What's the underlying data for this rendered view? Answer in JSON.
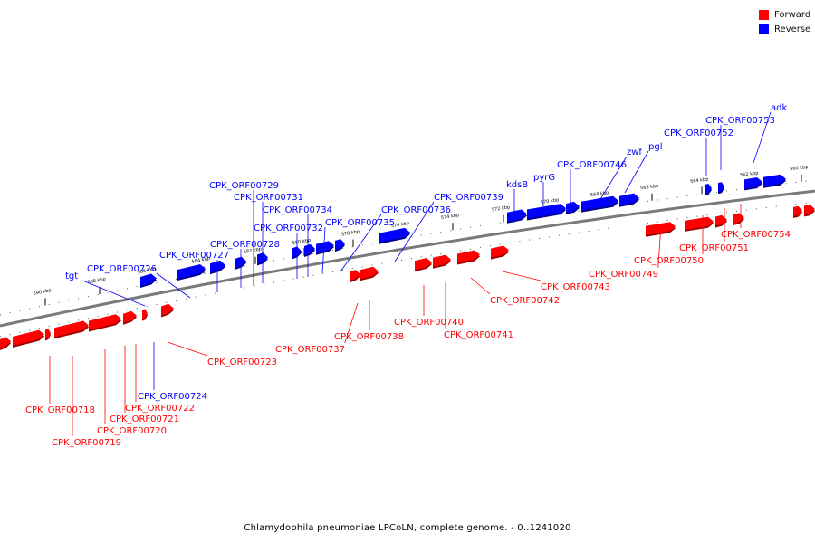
{
  "caption": "Chlamydophila pneumoniae LPCoLN, complete genome. - 0..1241020",
  "legend": [
    {
      "label": "Forward",
      "color": "#ff0000"
    },
    {
      "label": "Reverse",
      "color": "#0000ff"
    }
  ],
  "colors": {
    "forward": "#ff0000",
    "forward_dark": "#a00000",
    "reverse": "#0000ff",
    "reverse_dark": "#00008c",
    "backbone": "#7a7a7a"
  },
  "ticks": [
    "590 kbp",
    "588 kbp",
    "586 kbp",
    "584 kbp",
    "582 kbp",
    "580 kbp",
    "578 kbp",
    "576 kbp",
    "574 kbp",
    "572 kbp",
    "570 kbp",
    "568 kbp",
    "566 kbp",
    "564 kbp",
    "562 kbp",
    "560 kbp"
  ],
  "reverse_genes": [
    "tgt",
    "CPK_ORF00726",
    "CPK_ORF00727",
    "CPK_ORF00728",
    "CPK_ORF00729",
    "CPK_ORF00731",
    "CPK_ORF00732",
    "CPK_ORF00734",
    "CPK_ORF00735",
    "CPK_ORF00736",
    "CPK_ORF00739",
    "kdsB",
    "pyrG",
    "CPK_ORF00746",
    "zwf",
    "pgl",
    "CPK_ORF00752",
    "CPK_ORF00753",
    "adk",
    "CPK_ORF00724"
  ],
  "forward_genes": [
    "CPK_ORF00718",
    "CPK_ORF00719",
    "CPK_ORF00720",
    "CPK_ORF00721",
    "CPK_ORF00722",
    "CPK_ORF00723",
    "CPK_ORF00737",
    "CPK_ORF00738",
    "CPK_ORF00740",
    "CPK_ORF00741",
    "CPK_ORF00742",
    "CPK_ORF00743",
    "CPK_ORF00749",
    "CPK_ORF00750",
    "CPK_ORF00751",
    "CPK_ORF00754"
  ]
}
